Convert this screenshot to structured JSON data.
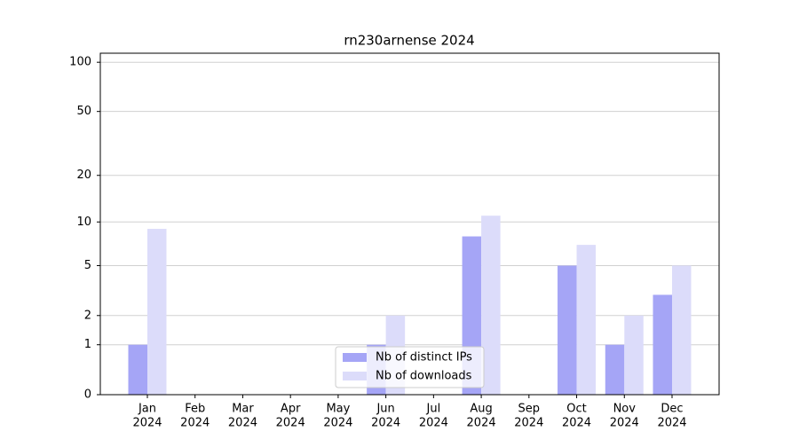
{
  "chart_data": {
    "type": "bar",
    "title": "rn230arnense 2024",
    "categories": [
      [
        "Jan",
        "2024"
      ],
      [
        "Feb",
        "2024"
      ],
      [
        "Mar",
        "2024"
      ],
      [
        "Apr",
        "2024"
      ],
      [
        "May",
        "2024"
      ],
      [
        "Jun",
        "2024"
      ],
      [
        "Jul",
        "2024"
      ],
      [
        "Aug",
        "2024"
      ],
      [
        "Sep",
        "2024"
      ],
      [
        "Oct",
        "2024"
      ],
      [
        "Nov",
        "2024"
      ],
      [
        "Dec",
        "2024"
      ]
    ],
    "series": [
      {
        "name": "Nb of distinct IPs",
        "color": "#a5a5f6",
        "values": [
          1,
          0,
          0,
          0,
          0,
          1,
          0,
          8,
          0,
          5,
          1,
          3
        ]
      },
      {
        "name": "Nb of downloads",
        "color": "#dcdcfa",
        "values": [
          9,
          0,
          0,
          0,
          0,
          2,
          0,
          11,
          0,
          7,
          2,
          5
        ]
      }
    ],
    "yscale": "log1p",
    "ylim": [
      0,
      113.5
    ],
    "yticks": [
      0,
      1,
      2,
      5,
      10,
      20,
      50,
      100
    ],
    "grid": true,
    "legend": "lower center"
  }
}
